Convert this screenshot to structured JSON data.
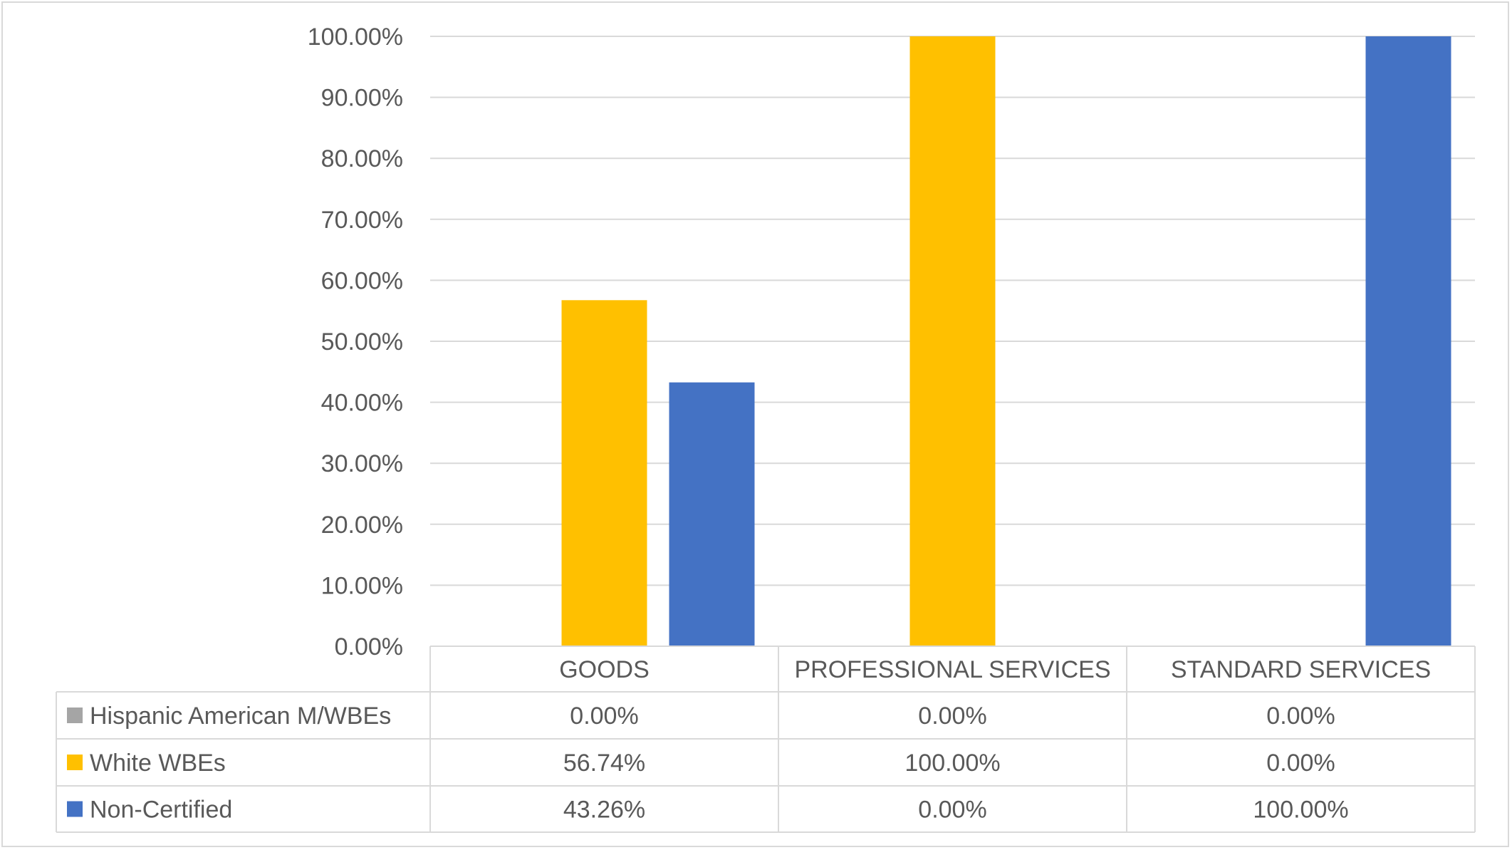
{
  "chart_data": {
    "type": "bar",
    "title": "",
    "xlabel": "",
    "ylabel": "",
    "categories": [
      "GOODS",
      "PROFESSIONAL SERVICES",
      "STANDARD SERVICES"
    ],
    "series": [
      {
        "name": "Hispanic American M/WBEs",
        "color": "#a5a5a5",
        "values": [
          0.0,
          0.0,
          0.0
        ],
        "labels": [
          "0.00%",
          "0.00%",
          "0.00%"
        ]
      },
      {
        "name": "White WBEs",
        "color": "#ffc000",
        "values": [
          56.74,
          100.0,
          0.0
        ],
        "labels": [
          "56.74%",
          "100.00%",
          "0.00%"
        ]
      },
      {
        "name": "Non-Certified",
        "color": "#4472c4",
        "values": [
          43.26,
          0.0,
          100.0
        ],
        "labels": [
          "43.26%",
          "0.00%",
          "100.00%"
        ]
      }
    ],
    "ylim": [
      0,
      100
    ],
    "yticks": [
      "0.00%",
      "10.00%",
      "20.00%",
      "30.00%",
      "40.00%",
      "50.00%",
      "60.00%",
      "70.00%",
      "80.00%",
      "90.00%",
      "100.00%"
    ],
    "grid": true,
    "legend": "data-table"
  }
}
